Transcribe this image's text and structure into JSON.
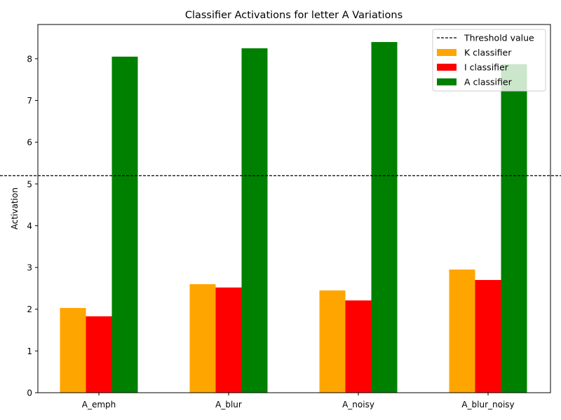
{
  "chart_data": {
    "type": "bar",
    "title": "Classifier Activations for letter A Variations",
    "xlabel": "",
    "ylabel": "Activation",
    "categories": [
      "A_emph",
      "A_blur",
      "A_noisy",
      "A_blur_noisy"
    ],
    "series": [
      {
        "name": "K classifier",
        "color": "#ffa500",
        "values": [
          2.03,
          2.6,
          2.45,
          2.95
        ]
      },
      {
        "name": "I classifier",
        "color": "#ff0000",
        "values": [
          1.83,
          2.52,
          2.21,
          2.7
        ]
      },
      {
        "name": "A classifier",
        "color": "#008000",
        "values": [
          8.05,
          8.25,
          8.4,
          7.87
        ]
      }
    ],
    "threshold": {
      "name": "Threshold value",
      "value": 5.2,
      "color": "#000000"
    },
    "ylim": [
      0,
      8.82
    ],
    "yticks": [
      0,
      1,
      2,
      3,
      4,
      5,
      6,
      7,
      8
    ],
    "grid": false,
    "legend_position": "top-right"
  }
}
